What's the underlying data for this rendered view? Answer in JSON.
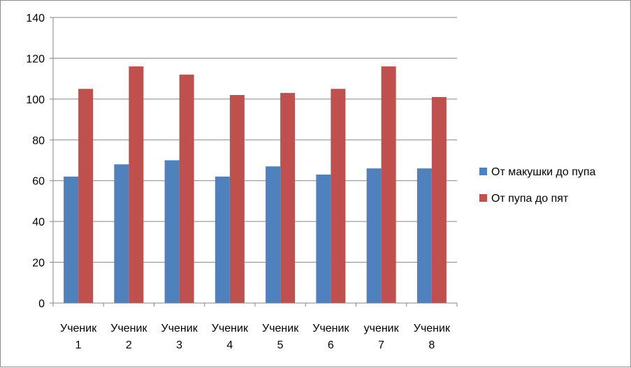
{
  "chart_data": {
    "type": "bar",
    "title": "",
    "xlabel": "",
    "ylabel": "",
    "categories": [
      [
        "Ученик",
        "1"
      ],
      [
        "Ученик",
        "2"
      ],
      [
        "Ученик",
        "3"
      ],
      [
        "Ученик",
        "4"
      ],
      [
        "Ученик",
        "5"
      ],
      [
        "Ученик",
        "6"
      ],
      [
        "ученик",
        "7"
      ],
      [
        "Ученик",
        "8"
      ]
    ],
    "series": [
      {
        "name": "От макушки до пупа",
        "color": "#4f81bd",
        "values": [
          62,
          68,
          70,
          62,
          67,
          63,
          66,
          66
        ]
      },
      {
        "name": "От пупа до пят",
        "color": "#c0504d",
        "values": [
          105,
          116,
          112,
          102,
          103,
          105,
          116,
          101
        ]
      }
    ],
    "ylim": [
      0,
      140
    ],
    "yticks": [
      0,
      20,
      40,
      60,
      80,
      100,
      120,
      140
    ],
    "grid": true,
    "legend_position": "right"
  }
}
